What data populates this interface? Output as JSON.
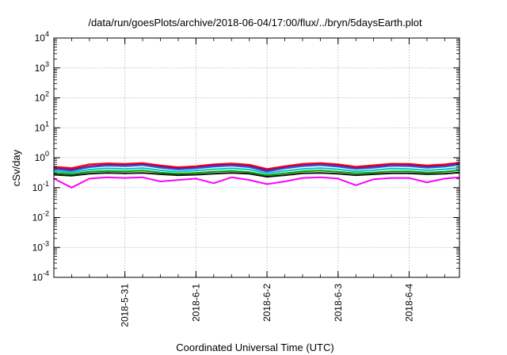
{
  "chart_data": {
    "type": "line",
    "title": "/data/run/goesPlots/archive/2018-06-04/17:00/flux/../bryn/5daysEarth.plot",
    "xlabel": "Coordinated Universal Time (UTC)",
    "ylabel": "cSv/day",
    "yscale": "log",
    "ylim": [
      0.0001,
      10000
    ],
    "xlim": [
      "2018-05-30T00:00",
      "2018-06-04T17:00"
    ],
    "grid": true,
    "legend": "none",
    "y_ticks": [
      {
        "base": "10",
        "exp": "-4",
        "value": 0.0001
      },
      {
        "base": "10",
        "exp": "-3",
        "value": 0.001
      },
      {
        "base": "10",
        "exp": "-2",
        "value": 0.01
      },
      {
        "base": "10",
        "exp": "-1",
        "value": 0.1
      },
      {
        "base": "10",
        "exp": "0",
        "value": 1
      },
      {
        "base": "10",
        "exp": "1",
        "value": 10
      },
      {
        "base": "10",
        "exp": "2",
        "value": 100
      },
      {
        "base": "10",
        "exp": "3",
        "value": 1000
      },
      {
        "base": "10",
        "exp": "4",
        "value": 10000
      }
    ],
    "x_ticks": [
      {
        "label": "2018-5-31",
        "value": "2018-05-31T00:00"
      },
      {
        "label": "2018-6-1",
        "value": "2018-06-01T00:00"
      },
      {
        "label": "2018-6-2",
        "value": "2018-06-02T00:00"
      },
      {
        "label": "2018-6-3",
        "value": "2018-06-03T00:00"
      },
      {
        "label": "2018-6-4",
        "value": "2018-06-04T00:00"
      }
    ],
    "x_major_step_days": 1,
    "x": [
      "2018-05-30T00:00",
      "2018-05-30T06:00",
      "2018-05-30T12:00",
      "2018-05-30T18:00",
      "2018-05-31T00:00",
      "2018-05-31T06:00",
      "2018-05-31T12:00",
      "2018-05-31T18:00",
      "2018-06-01T00:00",
      "2018-06-01T06:00",
      "2018-06-01T12:00",
      "2018-06-01T18:00",
      "2018-06-02T00:00",
      "2018-06-02T06:00",
      "2018-06-02T12:00",
      "2018-06-02T18:00",
      "2018-06-03T00:00",
      "2018-06-03T06:00",
      "2018-06-03T12:00",
      "2018-06-03T18:00",
      "2018-06-04T00:00",
      "2018-06-04T06:00",
      "2018-06-04T12:00",
      "2018-06-04T17:00"
    ],
    "series": [
      {
        "color": "#ff0000",
        "values": [
          0.5,
          0.45,
          0.6,
          0.65,
          0.62,
          0.66,
          0.55,
          0.48,
          0.52,
          0.6,
          0.64,
          0.58,
          0.42,
          0.52,
          0.62,
          0.66,
          0.6,
          0.5,
          0.56,
          0.63,
          0.62,
          0.55,
          0.6,
          0.68
        ]
      },
      {
        "color": "#8b008b",
        "values": [
          0.45,
          0.4,
          0.52,
          0.58,
          0.56,
          0.6,
          0.5,
          0.44,
          0.47,
          0.55,
          0.58,
          0.52,
          0.38,
          0.47,
          0.56,
          0.6,
          0.54,
          0.45,
          0.5,
          0.57,
          0.56,
          0.5,
          0.54,
          0.62
        ]
      },
      {
        "color": "#2b5fd9",
        "values": [
          0.42,
          0.36,
          0.48,
          0.54,
          0.52,
          0.56,
          0.46,
          0.4,
          0.44,
          0.5,
          0.54,
          0.48,
          0.34,
          0.44,
          0.52,
          0.56,
          0.5,
          0.42,
          0.46,
          0.53,
          0.52,
          0.46,
          0.5,
          0.58
        ]
      },
      {
        "color": "#00c8c8",
        "values": [
          0.36,
          0.32,
          0.4,
          0.44,
          0.42,
          0.45,
          0.38,
          0.34,
          0.37,
          0.41,
          0.44,
          0.4,
          0.3,
          0.36,
          0.42,
          0.45,
          0.41,
          0.35,
          0.38,
          0.43,
          0.42,
          0.38,
          0.41,
          0.46
        ]
      },
      {
        "color": "#00a000",
        "values": [
          0.31,
          0.28,
          0.34,
          0.36,
          0.35,
          0.37,
          0.32,
          0.29,
          0.31,
          0.34,
          0.36,
          0.33,
          0.26,
          0.3,
          0.35,
          0.37,
          0.34,
          0.3,
          0.32,
          0.35,
          0.35,
          0.32,
          0.34,
          0.38
        ]
      },
      {
        "color": "#111111",
        "values": [
          0.27,
          0.25,
          0.29,
          0.31,
          0.3,
          0.31,
          0.28,
          0.26,
          0.27,
          0.29,
          0.31,
          0.29,
          0.23,
          0.26,
          0.3,
          0.31,
          0.29,
          0.26,
          0.28,
          0.3,
          0.3,
          0.28,
          0.29,
          0.32
        ]
      },
      {
        "color": "#ff00ff",
        "values": [
          0.2,
          0.1,
          0.2,
          0.22,
          0.21,
          0.22,
          0.16,
          0.18,
          0.2,
          0.14,
          0.22,
          0.18,
          0.13,
          0.16,
          0.21,
          0.22,
          0.2,
          0.12,
          0.19,
          0.21,
          0.21,
          0.15,
          0.2,
          0.22
        ]
      }
    ]
  }
}
